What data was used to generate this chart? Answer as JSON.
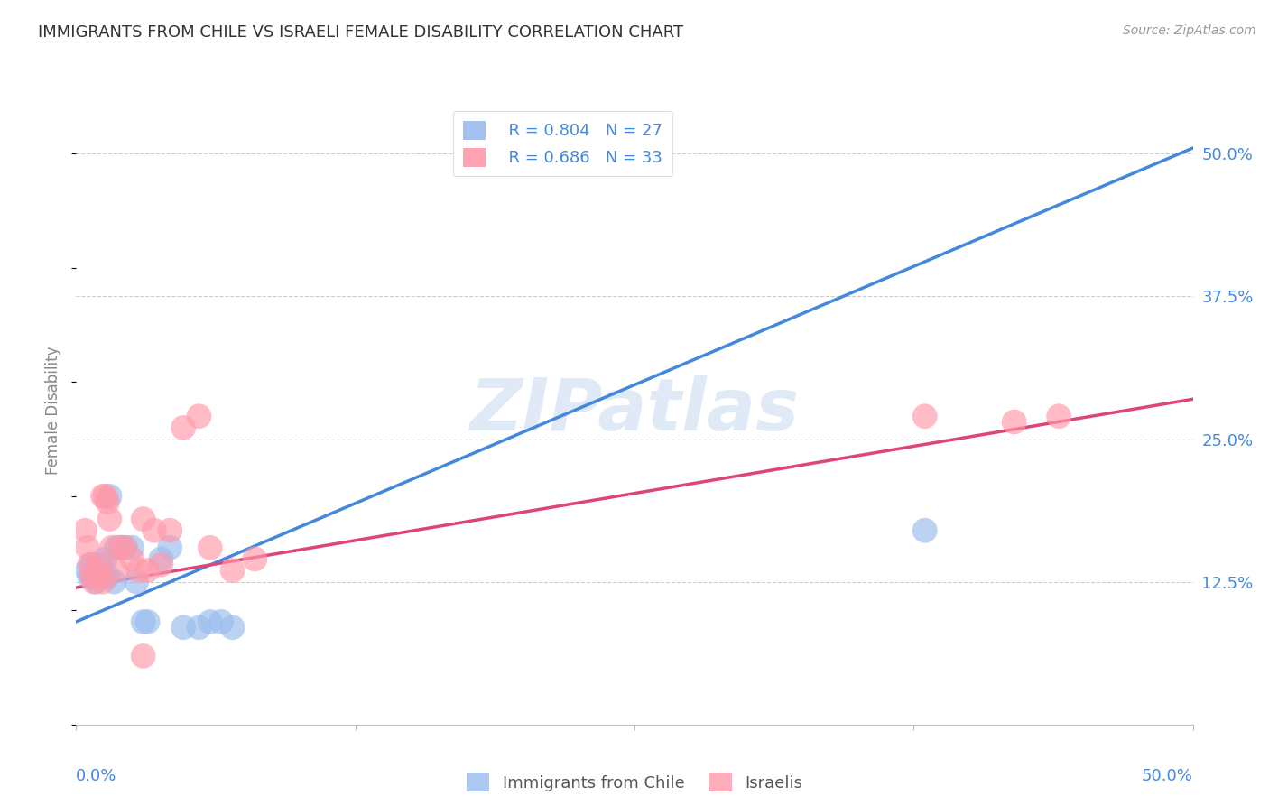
{
  "title": "IMMIGRANTS FROM CHILE VS ISRAELI FEMALE DISABILITY CORRELATION CHART",
  "source": "Source: ZipAtlas.com",
  "ylabel": "Female Disability",
  "watermark": "ZIPatlas",
  "xlim": [
    0.0,
    0.5
  ],
  "ylim": [
    0.0,
    0.55
  ],
  "yticks": [
    0.125,
    0.25,
    0.375,
    0.5
  ],
  "ytick_labels": [
    "12.5%",
    "25.0%",
    "37.5%",
    "50.0%"
  ],
  "xticks": [
    0.0,
    0.125,
    0.25,
    0.375,
    0.5
  ],
  "legend_blue_r": "R = 0.804",
  "legend_blue_n": "N = 27",
  "legend_pink_r": "R = 0.686",
  "legend_pink_n": "N = 33",
  "blue_color": "#99BBEE",
  "pink_color": "#FF99AA",
  "blue_line_color": "#4488DD",
  "pink_line_color": "#DD4477",
  "background_color": "#FFFFFF",
  "grid_color": "#CCCCCC",
  "title_color": "#333333",
  "axis_label_color": "#4488DD",
  "chile_scatter_x": [
    0.005,
    0.006,
    0.007,
    0.008,
    0.009,
    0.01,
    0.011,
    0.012,
    0.013,
    0.014,
    0.015,
    0.017,
    0.018,
    0.02,
    0.022,
    0.025,
    0.027,
    0.03,
    0.032,
    0.038,
    0.042,
    0.048,
    0.055,
    0.06,
    0.065,
    0.07,
    0.38
  ],
  "chile_scatter_y": [
    0.135,
    0.13,
    0.14,
    0.13,
    0.125,
    0.135,
    0.14,
    0.13,
    0.145,
    0.13,
    0.2,
    0.125,
    0.155,
    0.155,
    0.155,
    0.155,
    0.125,
    0.09,
    0.09,
    0.145,
    0.155,
    0.085,
    0.085,
    0.09,
    0.09,
    0.085,
    0.17
  ],
  "israel_scatter_x": [
    0.004,
    0.005,
    0.006,
    0.007,
    0.008,
    0.009,
    0.01,
    0.011,
    0.012,
    0.013,
    0.014,
    0.015,
    0.016,
    0.018,
    0.02,
    0.022,
    0.025,
    0.028,
    0.03,
    0.032,
    0.035,
    0.038,
    0.042,
    0.048,
    0.055,
    0.06,
    0.07,
    0.08,
    0.38,
    0.42,
    0.44,
    0.012,
    0.03
  ],
  "israel_scatter_y": [
    0.17,
    0.155,
    0.14,
    0.13,
    0.125,
    0.135,
    0.14,
    0.13,
    0.2,
    0.2,
    0.195,
    0.18,
    0.155,
    0.135,
    0.155,
    0.155,
    0.145,
    0.135,
    0.18,
    0.135,
    0.17,
    0.14,
    0.17,
    0.26,
    0.27,
    0.155,
    0.135,
    0.145,
    0.27,
    0.265,
    0.27,
    0.125,
    0.06
  ],
  "blue_trendline_x": [
    0.0,
    0.5
  ],
  "blue_trendline_y": [
    0.09,
    0.505
  ],
  "pink_trendline_x": [
    0.0,
    0.5
  ],
  "pink_trendline_y": [
    0.12,
    0.285
  ]
}
